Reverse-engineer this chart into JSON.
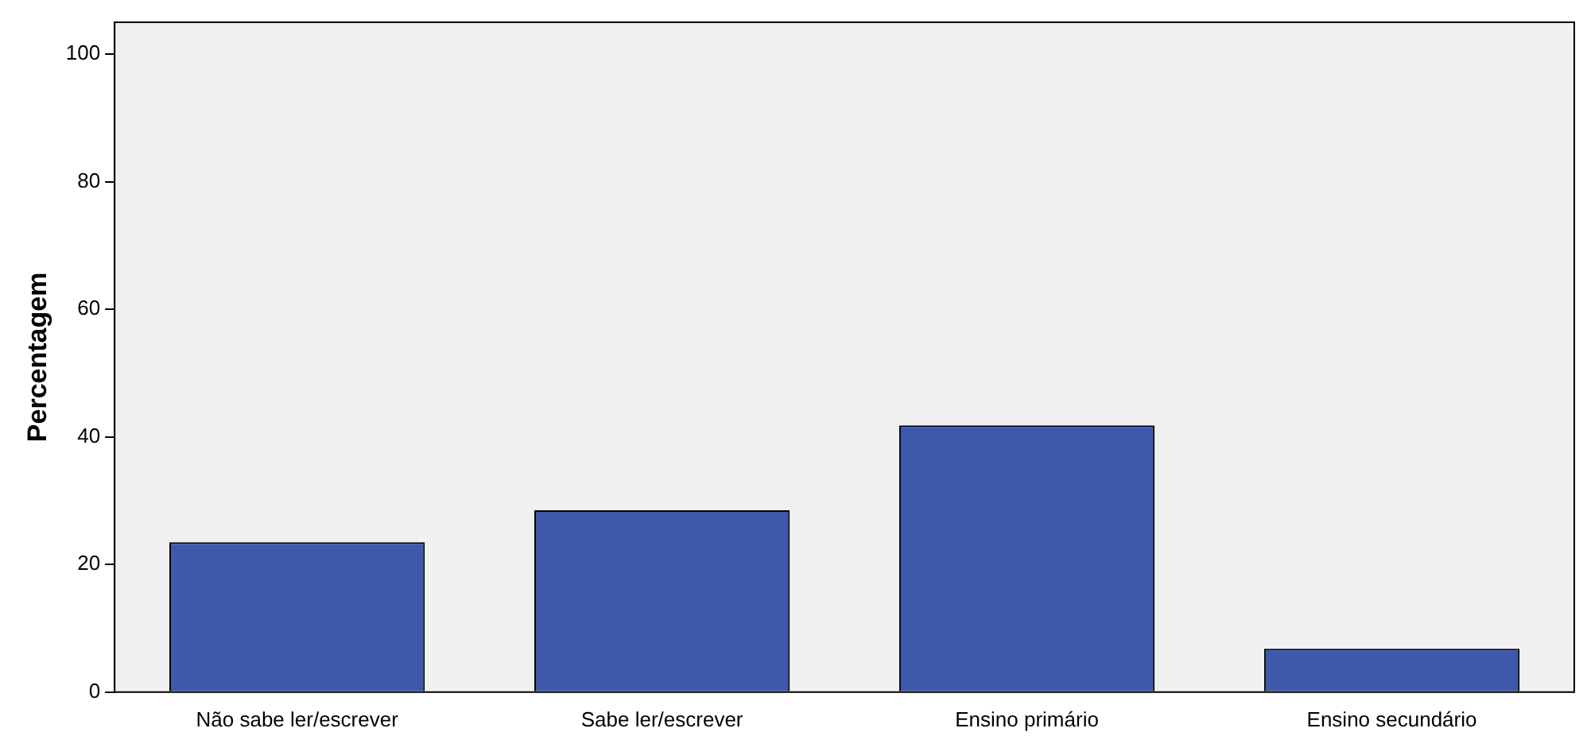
{
  "chart_data": {
    "type": "bar",
    "ylabel": "Percentagem",
    "categories": [
      "Não sabe ler/escrever",
      "Sabe ler/escrever",
      "Ensino primário",
      "Ensino secundário"
    ],
    "values": [
      23.5,
      28.5,
      41.8,
      6.8
    ],
    "color": "#3e58ac",
    "ylim": [
      0,
      105
    ],
    "yticks": [
      0,
      20,
      40,
      60,
      80,
      100
    ],
    "grid": false,
    "legend": false
  }
}
